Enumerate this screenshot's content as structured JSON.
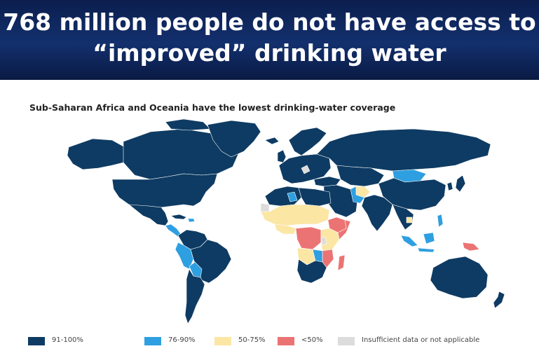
{
  "header": {
    "title_line1": "768 million people do not have access to",
    "title_line2": "“improved” drinking water"
  },
  "map": {
    "subtitle": "Sub-Saharan Africa and Oceania have the lowest drinking-water coverage"
  },
  "colors": {
    "c91_100": "#0e3b63",
    "c76_90": "#2e9fe0",
    "c50_75": "#fbe6a4",
    "lt50": "#ec7373",
    "insufficient": "#dcdcdc"
  },
  "legend": [
    {
      "key": "c91_100",
      "label": "91-100%"
    },
    {
      "key": "c76_90",
      "label": "76-90%"
    },
    {
      "key": "c50_75",
      "label": "50-75%"
    },
    {
      "key": "lt50",
      "label": "<50%"
    },
    {
      "key": "insufficient",
      "label": "Insufficient data or not applicable"
    }
  ]
}
